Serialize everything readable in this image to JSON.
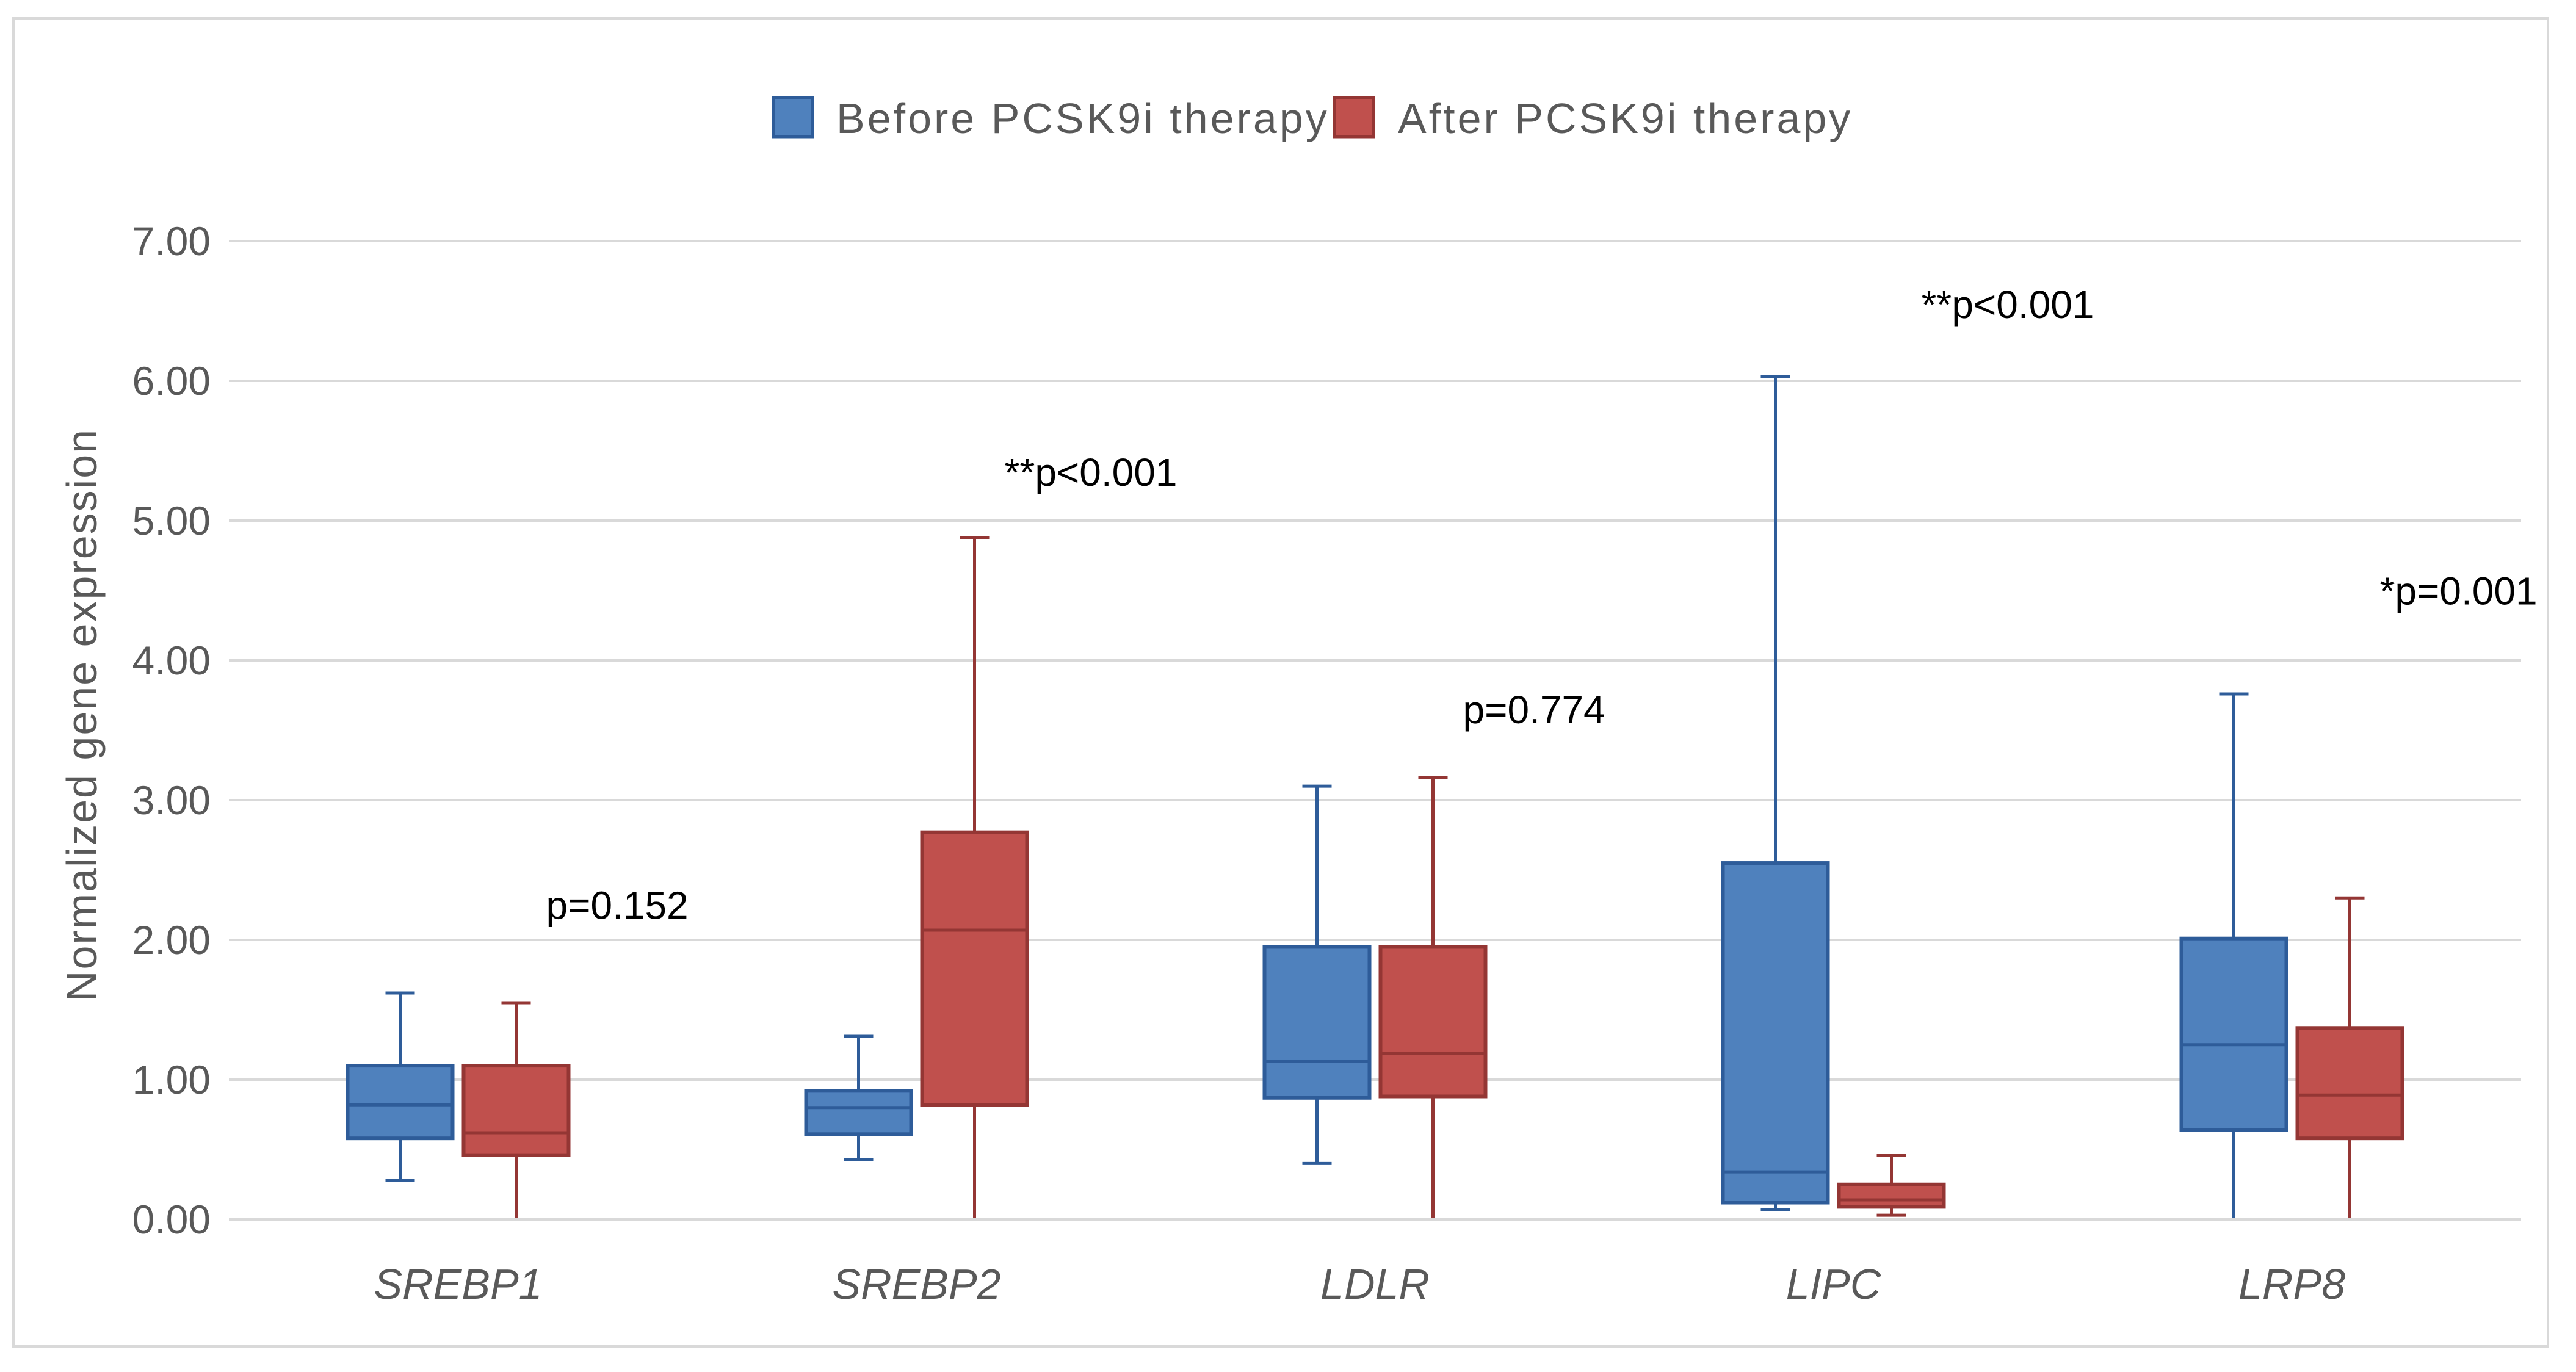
{
  "chart_data": {
    "type": "boxplot",
    "title": "",
    "xlabel": "",
    "ylabel": "Normalized gene expression",
    "ylim": [
      0,
      7
    ],
    "yticks": [
      0,
      1,
      2,
      3,
      4,
      5,
      6,
      7
    ],
    "ytick_labels": [
      "0.00",
      "1.00",
      "2.00",
      "3.00",
      "4.00",
      "5.00",
      "6.00",
      "7.00"
    ],
    "grid": true,
    "legend_position": "top-center",
    "categories": [
      "SREBP1",
      "SREBP2",
      "LDLR",
      "LIPC",
      "LRP8"
    ],
    "series": [
      {
        "name": "Before PCSK9i therapy",
        "color": "#4f81bd",
        "edge": "#2e5c99",
        "boxes": [
          {
            "min": 0.28,
            "q1": 0.58,
            "median": 0.82,
            "q3": 1.1,
            "max": 1.62
          },
          {
            "min": 0.43,
            "q1": 0.61,
            "median": 0.8,
            "q3": 0.92,
            "max": 1.31
          },
          {
            "min": 0.4,
            "q1": 0.87,
            "median": 1.13,
            "q3": 1.95,
            "max": 3.1
          },
          {
            "min": 0.07,
            "q1": 0.12,
            "median": 0.34,
            "q3": 2.55,
            "max": 6.03
          },
          {
            "min": 0.0,
            "q1": 0.64,
            "median": 1.25,
            "q3": 2.01,
            "max": 3.76
          }
        ]
      },
      {
        "name": "After PCSK9i therapy",
        "color": "#c0504d",
        "edge": "#943634",
        "boxes": [
          {
            "min": 0.0,
            "q1": 0.46,
            "median": 0.62,
            "q3": 1.1,
            "max": 1.55
          },
          {
            "min": 0.0,
            "q1": 0.82,
            "median": 2.07,
            "q3": 2.77,
            "max": 4.88
          },
          {
            "min": 0.0,
            "q1": 0.88,
            "median": 1.19,
            "q3": 1.95,
            "max": 3.16
          },
          {
            "min": 0.03,
            "q1": 0.09,
            "median": 0.14,
            "q3": 0.25,
            "max": 0.46
          },
          {
            "min": 0.0,
            "q1": 0.58,
            "median": 0.89,
            "q3": 1.37,
            "max": 2.3
          }
        ]
      }
    ],
    "annotations": [
      {
        "category": "SREBP1",
        "text": "p=0.152",
        "y": 2.15
      },
      {
        "category": "SREBP2",
        "text": "**p<0.001",
        "y": 5.25
      },
      {
        "category": "LDLR",
        "text": "p=0.774",
        "y": 3.55
      },
      {
        "category": "LIPC",
        "text": "**p<0.001",
        "y": 6.45
      },
      {
        "category": "LRP8",
        "text": "*p=0.001",
        "y": 4.4
      }
    ]
  }
}
